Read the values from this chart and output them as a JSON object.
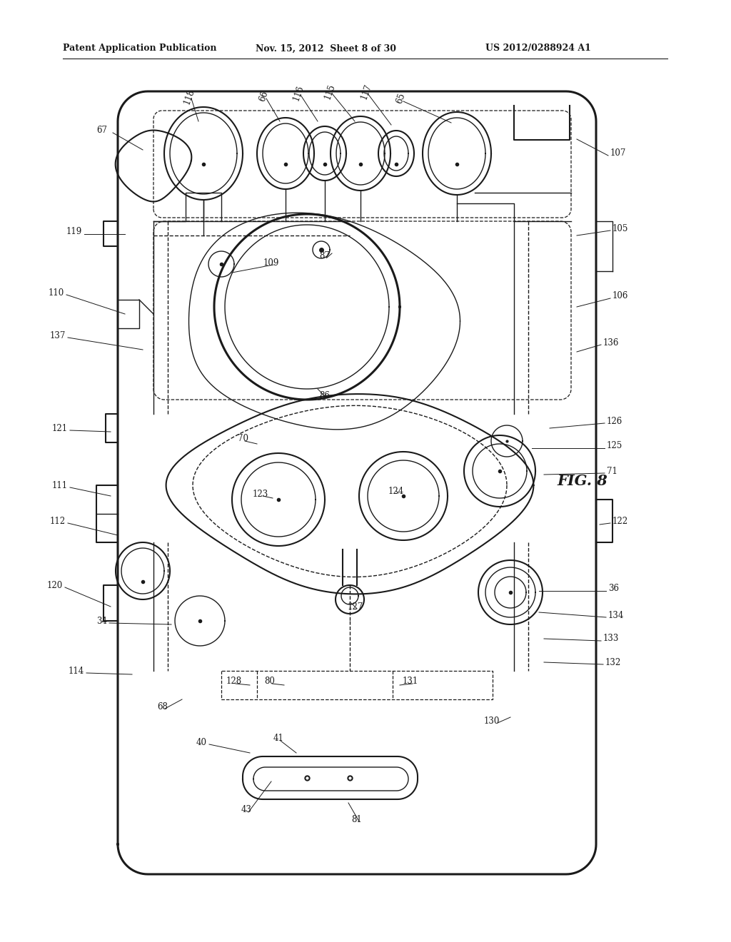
{
  "title_left": "Patent Application Publication",
  "title_mid": "Nov. 15, 2012  Sheet 8 of 30",
  "title_right": "US 2012/0288924 A1",
  "fig_label": "FIG. 8",
  "bg_color": "#ffffff",
  "line_color": "#1a1a1a",
  "label_fontsize": 8.5,
  "header_fontsize": 9,
  "fig_fontsize": 15
}
